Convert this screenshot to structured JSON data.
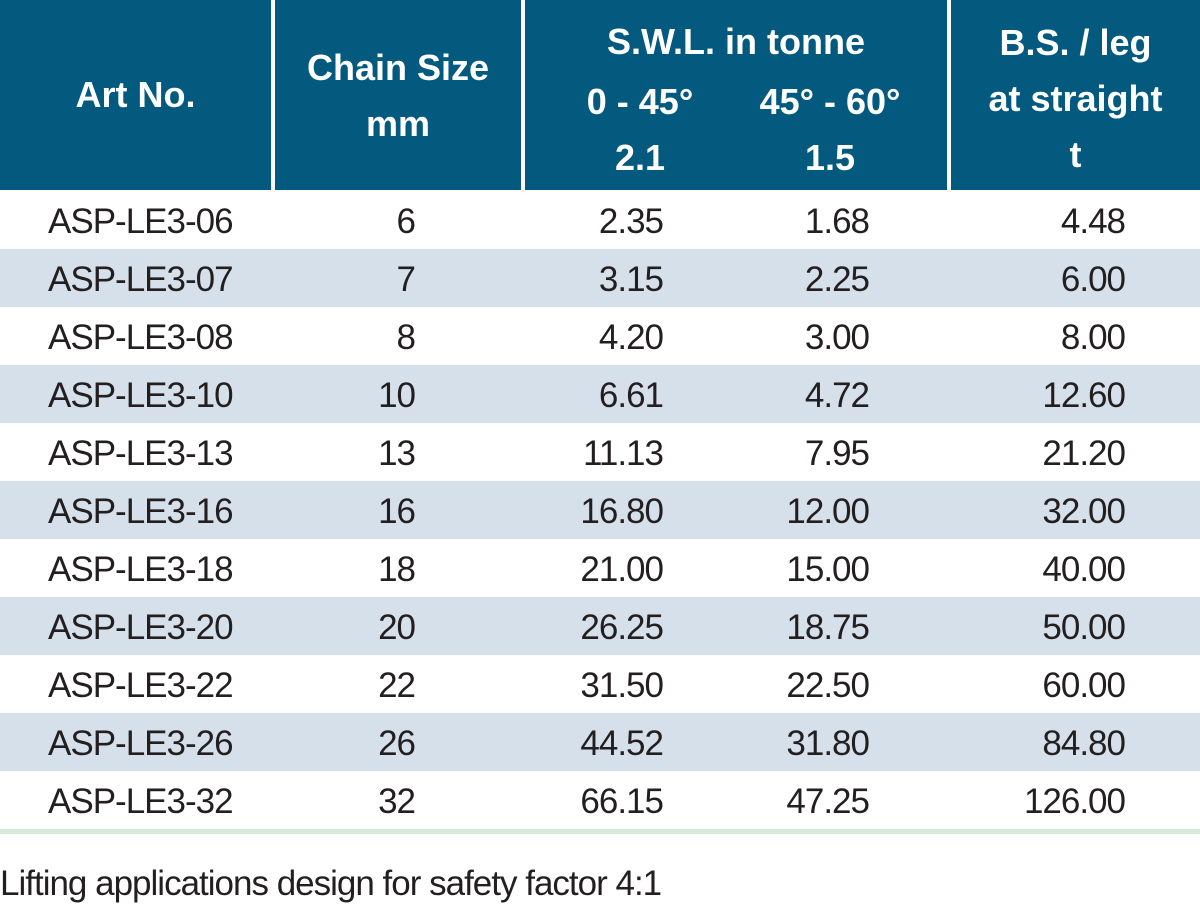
{
  "header": {
    "art_no": "Art No.",
    "chain_size": [
      "Chain Size",
      "mm"
    ],
    "swl_title": "S.W.L. in tonne",
    "swl_col1": [
      "0 - 45°",
      "2.1"
    ],
    "swl_col2": [
      "45° - 60°",
      "1.5"
    ],
    "bs": [
      "B.S. / leg",
      "at straight",
      "t"
    ]
  },
  "rows": [
    {
      "art": "ASP-LE3-06",
      "chain": "6",
      "swl1": "2.35",
      "swl2": "1.68",
      "bs": "4.48"
    },
    {
      "art": "ASP-LE3-07",
      "chain": "7",
      "swl1": "3.15",
      "swl2": "2.25",
      "bs": "6.00"
    },
    {
      "art": "ASP-LE3-08",
      "chain": "8",
      "swl1": "4.20",
      "swl2": "3.00",
      "bs": "8.00"
    },
    {
      "art": "ASP-LE3-10",
      "chain": "10",
      "swl1": "6.61",
      "swl2": "4.72",
      "bs": "12.60"
    },
    {
      "art": "ASP-LE3-13",
      "chain": "13",
      "swl1": "11.13",
      "swl2": "7.95",
      "bs": "21.20"
    },
    {
      "art": "ASP-LE3-16",
      "chain": "16",
      "swl1": "16.80",
      "swl2": "12.00",
      "bs": "32.00"
    },
    {
      "art": "ASP-LE3-18",
      "chain": "18",
      "swl1": "21.00",
      "swl2": "15.00",
      "bs": "40.00"
    },
    {
      "art": "ASP-LE3-20",
      "chain": "20",
      "swl1": "26.25",
      "swl2": "18.75",
      "bs": "50.00"
    },
    {
      "art": "ASP-LE3-22",
      "chain": "22",
      "swl1": "31.50",
      "swl2": "22.50",
      "bs": "60.00"
    },
    {
      "art": "ASP-LE3-26",
      "chain": "26",
      "swl1": "44.52",
      "swl2": "31.80",
      "bs": "84.80"
    },
    {
      "art": "ASP-LE3-32",
      "chain": "32",
      "swl1": "66.15",
      "swl2": "47.25",
      "bs": "126.00"
    }
  ],
  "footnote": "Lifting applications design for safety factor 4:1",
  "colors": {
    "header_bg": "#035a7e",
    "header_text": "#ffffff",
    "alt_row_bg": "#d5e0ea",
    "body_text": "#231f20",
    "bottom_rule": "#d8ebd8"
  }
}
